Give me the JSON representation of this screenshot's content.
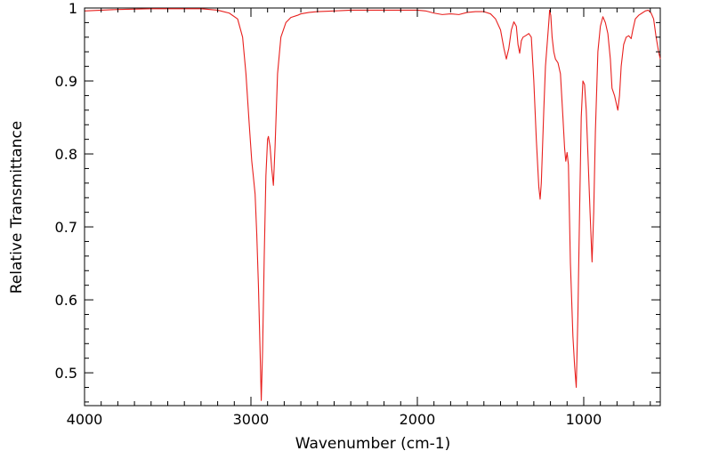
{
  "chart_data": {
    "type": "line",
    "title": "",
    "xlabel": "Wavenumber (cm-1)",
    "ylabel": "Relative Transmittance",
    "xlim": [
      4000,
      540
    ],
    "ylim": [
      0.455,
      1.0
    ],
    "x_reversed": true,
    "x_ticks": [
      4000,
      3000,
      2000,
      1000
    ],
    "x_tick_labels": [
      "4000",
      "3000",
      "2000",
      "1000"
    ],
    "y_ticks": [
      0.5,
      0.6,
      0.7,
      0.8,
      0.9,
      1.0
    ],
    "y_tick_labels": [
      "0.5",
      "0.6",
      "0.7",
      "0.8",
      "0.9",
      "1"
    ],
    "grid": false,
    "legend": "none",
    "series": [
      {
        "color": "#e8201e",
        "points": [
          [
            4000,
            0.996
          ],
          [
            3800,
            0.998
          ],
          [
            3600,
            0.999
          ],
          [
            3400,
            0.999
          ],
          [
            3300,
            0.999
          ],
          [
            3200,
            0.997
          ],
          [
            3130,
            0.993
          ],
          [
            3080,
            0.985
          ],
          [
            3050,
            0.96
          ],
          [
            3030,
            0.91
          ],
          [
            3010,
            0.84
          ],
          [
            2995,
            0.79
          ],
          [
            2985,
            0.768
          ],
          [
            2975,
            0.745
          ],
          [
            2965,
            0.69
          ],
          [
            2955,
            0.62
          ],
          [
            2945,
            0.53
          ],
          [
            2938,
            0.462
          ],
          [
            2930,
            0.53
          ],
          [
            2920,
            0.66
          ],
          [
            2910,
            0.77
          ],
          [
            2900,
            0.82
          ],
          [
            2895,
            0.824
          ],
          [
            2885,
            0.81
          ],
          [
            2875,
            0.78
          ],
          [
            2865,
            0.757
          ],
          [
            2855,
            0.81
          ],
          [
            2840,
            0.91
          ],
          [
            2820,
            0.96
          ],
          [
            2790,
            0.98
          ],
          [
            2760,
            0.987
          ],
          [
            2720,
            0.99
          ],
          [
            2700,
            0.992
          ],
          [
            2650,
            0.994
          ],
          [
            2600,
            0.995
          ],
          [
            2500,
            0.996
          ],
          [
            2400,
            0.997
          ],
          [
            2300,
            0.997
          ],
          [
            2200,
            0.997
          ],
          [
            2100,
            0.997
          ],
          [
            2000,
            0.997
          ],
          [
            1950,
            0.996
          ],
          [
            1900,
            0.993
          ],
          [
            1850,
            0.991
          ],
          [
            1800,
            0.992
          ],
          [
            1750,
            0.991
          ],
          [
            1700,
            0.994
          ],
          [
            1650,
            0.995
          ],
          [
            1600,
            0.995
          ],
          [
            1560,
            0.992
          ],
          [
            1530,
            0.985
          ],
          [
            1500,
            0.97
          ],
          [
            1480,
            0.945
          ],
          [
            1465,
            0.93
          ],
          [
            1450,
            0.945
          ],
          [
            1435,
            0.97
          ],
          [
            1420,
            0.981
          ],
          [
            1405,
            0.975
          ],
          [
            1395,
            0.95
          ],
          [
            1385,
            0.938
          ],
          [
            1375,
            0.955
          ],
          [
            1365,
            0.96
          ],
          [
            1350,
            0.962
          ],
          [
            1330,
            0.965
          ],
          [
            1315,
            0.96
          ],
          [
            1300,
            0.9
          ],
          [
            1285,
            0.82
          ],
          [
            1270,
            0.755
          ],
          [
            1262,
            0.738
          ],
          [
            1255,
            0.76
          ],
          [
            1240,
            0.86
          ],
          [
            1230,
            0.92
          ],
          [
            1220,
            0.95
          ],
          [
            1210,
            0.98
          ],
          [
            1205,
            0.997
          ],
          [
            1198,
            0.99
          ],
          [
            1190,
            0.96
          ],
          [
            1180,
            0.94
          ],
          [
            1170,
            0.93
          ],
          [
            1155,
            0.925
          ],
          [
            1140,
            0.91
          ],
          [
            1125,
            0.85
          ],
          [
            1115,
            0.808
          ],
          [
            1108,
            0.79
          ],
          [
            1100,
            0.802
          ],
          [
            1092,
            0.785
          ],
          [
            1080,
            0.65
          ],
          [
            1065,
            0.55
          ],
          [
            1055,
            0.51
          ],
          [
            1045,
            0.48
          ],
          [
            1035,
            0.58
          ],
          [
            1025,
            0.72
          ],
          [
            1015,
            0.85
          ],
          [
            1005,
            0.9
          ],
          [
            995,
            0.895
          ],
          [
            985,
            0.86
          ],
          [
            975,
            0.8
          ],
          [
            962,
            0.72
          ],
          [
            950,
            0.652
          ],
          [
            940,
            0.72
          ],
          [
            930,
            0.83
          ],
          [
            915,
            0.94
          ],
          [
            900,
            0.975
          ],
          [
            885,
            0.988
          ],
          [
            870,
            0.98
          ],
          [
            855,
            0.965
          ],
          [
            840,
            0.93
          ],
          [
            830,
            0.89
          ],
          [
            815,
            0.88
          ],
          [
            805,
            0.87
          ],
          [
            795,
            0.86
          ],
          [
            785,
            0.88
          ],
          [
            775,
            0.92
          ],
          [
            760,
            0.95
          ],
          [
            745,
            0.96
          ],
          [
            730,
            0.962
          ],
          [
            715,
            0.958
          ],
          [
            705,
            0.97
          ],
          [
            690,
            0.985
          ],
          [
            670,
            0.99
          ],
          [
            650,
            0.993
          ],
          [
            630,
            0.996
          ],
          [
            612,
            0.997
          ],
          [
            595,
            0.993
          ],
          [
            580,
            0.985
          ],
          [
            565,
            0.96
          ],
          [
            550,
            0.94
          ],
          [
            540,
            0.93
          ]
        ]
      }
    ]
  }
}
